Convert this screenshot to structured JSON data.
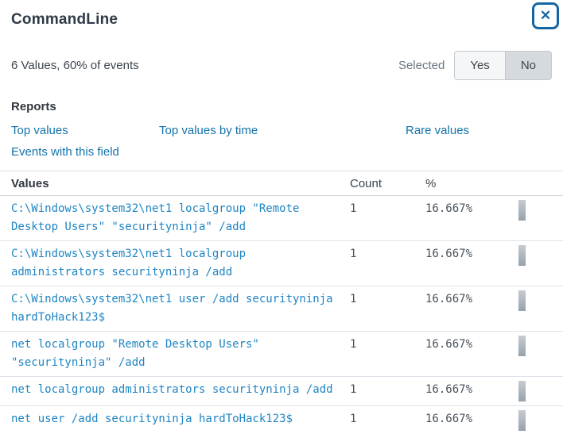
{
  "header": {
    "title": "CommandLine"
  },
  "icons": {
    "close": "✕"
  },
  "summary": {
    "text": "6 Values, 60% of events",
    "selected_label": "Selected",
    "yes_label": "Yes",
    "no_label": "No",
    "selected_value": "No"
  },
  "reports": {
    "heading": "Reports",
    "links": [
      "Top values",
      "Top values by time",
      "Rare values",
      "Events with this field"
    ]
  },
  "table": {
    "columns": {
      "values": "Values",
      "count": "Count",
      "percent": "%"
    },
    "rows": [
      {
        "value": "C:\\Windows\\system32\\net1 localgroup \"Remote Desktop Users\" \"securityninja\" /add",
        "count": "1",
        "percent": "16.667%"
      },
      {
        "value": "C:\\Windows\\system32\\net1 localgroup administrators securityninja /add",
        "count": "1",
        "percent": "16.667%"
      },
      {
        "value": "C:\\Windows\\system32\\net1 user /add securityninja hardToHack123$",
        "count": "1",
        "percent": "16.667%"
      },
      {
        "value": "net localgroup \"Remote Desktop Users\" \"securityninja\" /add",
        "count": "1",
        "percent": "16.667%"
      },
      {
        "value": "net localgroup administrators securityninja /add",
        "count": "1",
        "percent": "16.667%"
      },
      {
        "value": "net user /add securityninja hardToHack123$",
        "count": "1",
        "percent": "16.667%"
      }
    ]
  },
  "colors": {
    "link_blue": "#1473aa",
    "value_blue": "#1e85c3",
    "close_blue": "#1467a3",
    "toggle_selected_bg": "#d6dade",
    "toggle_unselected_bg": "#f5f6f7",
    "bar_gradient_top": "#c6cbd0",
    "bar_gradient_bottom": "#98a2ac",
    "title_text": "#2f3a47"
  }
}
